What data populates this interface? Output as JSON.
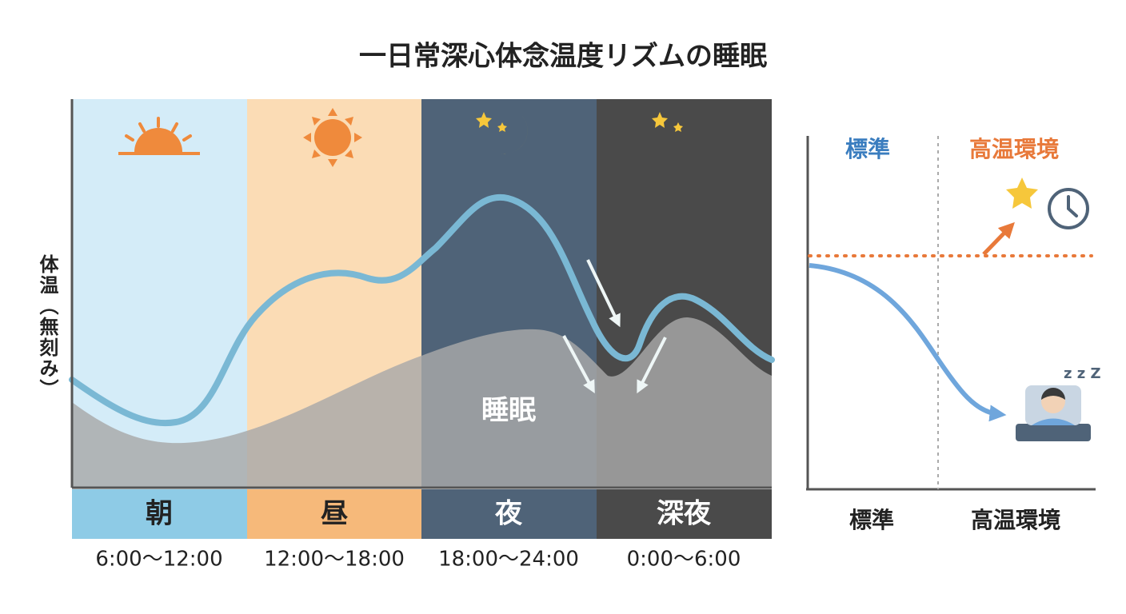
{
  "header": {
    "title": "一日常深心体念温度リズムの睡眠"
  },
  "chart": {
    "y_label": "体温（無刻み）",
    "periods": [
      {
        "name": "朝",
        "time": "6:00～12:00"
      },
      {
        "name": "昼",
        "time": "12:00～18:00"
      },
      {
        "name": "夜",
        "time": "18:00～24:00"
      },
      {
        "name": "深夜",
        "time": "0:00～6:00"
      }
    ],
    "sleep_label": "睡眠"
  },
  "comparison": {
    "top_labels": [
      "標準",
      "高温環境"
    ],
    "bottom_labels": [
      "標準",
      "高温環境"
    ]
  }
}
